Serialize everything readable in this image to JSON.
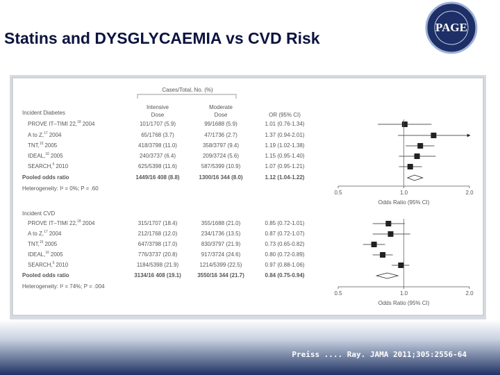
{
  "title": "Statins and DYSGLYCAEMIA vs CVD Risk",
  "logo": "PAGE",
  "citation": "Preiss .... Ray. JAMA 2011;305:2556-64",
  "chart_data": [
    {
      "type": "forest",
      "columns_title": "Cases/Total, No. (%)",
      "columns": [
        [
          "Intensive",
          "Dose"
        ],
        [
          "Moderate",
          "Dose"
        ],
        [
          "OR (95% CI)"
        ]
      ],
      "section": "Incident Diabetes",
      "studies": [
        {
          "name": "PROVE IT–TIMI 22,",
          "ref": "18",
          "year": "2004"
        },
        {
          "name": "A to Z,",
          "ref": "17",
          "year": "2004"
        },
        {
          "name": "TNT,",
          "ref": "15",
          "year": "2005"
        },
        {
          "name": "IDEAL,",
          "ref": "16",
          "year": "2005"
        },
        {
          "name": "SEARCH,",
          "ref": "5",
          "year": "2010"
        }
      ],
      "intensive": [
        "101/1707 (5.9)",
        "65/1768 (3.7)",
        "418/3798 (11.0)",
        "240/3737 (6.4)",
        "625/5398 (11.6)"
      ],
      "moderate": [
        "99/1688 (5.9)",
        "47/1736 (2.7)",
        "358/3797 (9.4)",
        "209/3724 (5.6)",
        "587/5399 (10.9)"
      ],
      "values": [
        1.01,
        1.37,
        1.19,
        1.15,
        1.07
      ],
      "ci_low": [
        0.76,
        0.94,
        1.02,
        0.95,
        0.95
      ],
      "ci_high": [
        1.34,
        2.01,
        1.38,
        1.4,
        1.21
      ],
      "value_labels": [
        "1.01 (0.76-1.34)",
        "1.37 (0.94-2.01)",
        "1.19 (1.02-1.38)",
        "1.15 (0.95-1.40)",
        "1.07 (0.95-1.21)"
      ],
      "pooled": {
        "label": "Pooled odds ratio",
        "intensive": "1449/16 408 (8.8)",
        "moderate": "1300/16 344 (8.0)",
        "value": 1.12,
        "ci_low": 1.04,
        "ci_high": 1.22,
        "value_label": "1.12 (1.04-1.22)"
      },
      "heterogeneity": "Heterogeneity: I² = 0%; P = .60",
      "xlim": [
        0.5,
        2
      ],
      "xticks": [
        0.5,
        {
          "value": 1,
          "label": "1.0"
        },
        {
          "value": 2,
          "label": "2.0"
        }
      ],
      "xlabel": "Odds Ratio (95% CI)",
      "log": true,
      "color": "#222"
    },
    {
      "type": "forest",
      "section": "Incident CVD",
      "studies": [
        {
          "name": "PROVE IT–TIMI 22,",
          "ref": "18",
          "year": "2004"
        },
        {
          "name": "A to Z,",
          "ref": "17",
          "year": "2004"
        },
        {
          "name": "TNT,",
          "ref": "15",
          "year": "2005"
        },
        {
          "name": "IDEAL,",
          "ref": "16",
          "year": "2005"
        },
        {
          "name": "SEARCH,",
          "ref": "5",
          "year": "2010"
        }
      ],
      "intensive": [
        "315/1707 (18.4)",
        "212/1768 (12.0)",
        "647/3798 (17.0)",
        "776/3737 (20.8)",
        "1184/5398 (21.9)"
      ],
      "moderate": [
        "355/1688 (21.0)",
        "234/1736 (13.5)",
        "830/3797 (21.9)",
        "917/3724 (24.6)",
        "1214/5399 (22.5)"
      ],
      "values": [
        0.85,
        0.87,
        0.73,
        0.8,
        0.97
      ],
      "ci_low": [
        0.72,
        0.72,
        0.65,
        0.72,
        0.88
      ],
      "ci_high": [
        1.01,
        1.07,
        0.82,
        0.89,
        1.06
      ],
      "value_labels": [
        "0.85 (0.72-1.01)",
        "0.87 (0.72-1.07)",
        "0.73 (0.65-0.82)",
        "0.80 (0.72-0.89)",
        "0.97 (0.88-1.06)"
      ],
      "pooled": {
        "label": "Pooled odds ratio",
        "intensive": "3134/16 408 (19.1)",
        "moderate": "3550/16 344 (21.7)",
        "value": 0.84,
        "ci_low": 0.75,
        "ci_high": 0.94,
        "value_label": "0.84 (0.75-0.94)"
      },
      "heterogeneity": "Heterogeneity: I² = 74%; P = .004",
      "xlim": [
        0.5,
        2
      ],
      "xticks": [
        0.5,
        {
          "value": 1,
          "label": "1.0"
        },
        {
          "value": 2,
          "label": "2.0"
        }
      ],
      "xlabel": "Odds Ratio (95% CI)",
      "log": true,
      "color": "#222"
    }
  ]
}
